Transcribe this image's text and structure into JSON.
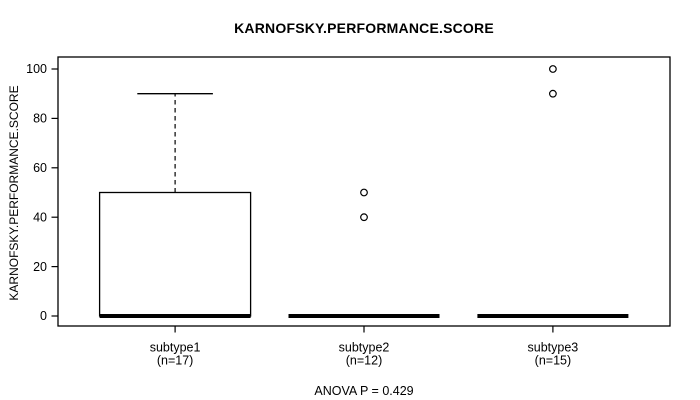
{
  "chart_data": {
    "type": "boxplot",
    "title": "KARNOFSKY.PERFORMANCE.SCORE",
    "ylabel": "KARNOFSKY.PERFORMANCE.SCORE",
    "xlabel": "",
    "footer": "ANOVA P = 0.429",
    "ylim": [
      0,
      100
    ],
    "yticks": [
      0,
      20,
      40,
      60,
      80,
      100
    ],
    "grid": false,
    "legend": "none",
    "groups": [
      {
        "label": "subtype1",
        "sublabel": "(n=17)",
        "n": 17,
        "median": 0,
        "q1": 0,
        "q3": 50,
        "whisker_low": 0,
        "whisker_high": 90,
        "outliers": []
      },
      {
        "label": "subtype2",
        "sublabel": "(n=12)",
        "n": 12,
        "median": 0,
        "q1": 0,
        "q3": 0,
        "whisker_low": 0,
        "whisker_high": 0,
        "outliers": [
          50,
          40
        ]
      },
      {
        "label": "subtype3",
        "sublabel": "(n=15)",
        "n": 15,
        "median": 0,
        "q1": 0,
        "q3": 0,
        "whisker_low": 0,
        "whisker_high": 0,
        "outliers": [
          100,
          90
        ]
      }
    ],
    "colors": {
      "line": "#000000",
      "background": "#ffffff",
      "box_fill": "#ffffff"
    }
  }
}
